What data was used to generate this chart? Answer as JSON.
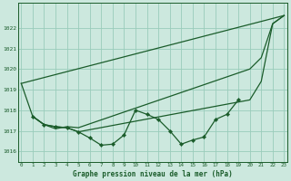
{
  "bg_color": "#cce8de",
  "grid_color": "#99ccbb",
  "line_color": "#1a5c2a",
  "title": "Graphe pression niveau de la mer (hPa)",
  "ylim": [
    1015.5,
    1023.2
  ],
  "yticks": [
    1016,
    1017,
    1018,
    1019,
    1020,
    1021,
    1022
  ],
  "xlim": [
    -0.3,
    23.3
  ],
  "xticks": [
    0,
    1,
    2,
    3,
    4,
    5,
    6,
    7,
    8,
    9,
    10,
    11,
    12,
    13,
    14,
    15,
    16,
    17,
    18,
    19,
    20,
    21,
    22,
    23
  ],
  "series_straight": [
    [
      0,
      23
    ],
    [
      1019.3,
      1022.6
    ]
  ],
  "series_upper": {
    "x": [
      0,
      1,
      2,
      3,
      4,
      5,
      20,
      21,
      22,
      23
    ],
    "y": [
      1019.3,
      1017.7,
      1017.3,
      1017.1,
      1017.2,
      1017.15,
      1020.0,
      1020.55,
      1022.2,
      1022.6
    ]
  },
  "series_lower_smooth": {
    "x": [
      1,
      2,
      3,
      4,
      5,
      20,
      21,
      22,
      23
    ],
    "y": [
      1017.7,
      1017.3,
      1017.2,
      1017.15,
      1016.95,
      1018.5,
      1019.4,
      1022.2,
      1022.6
    ]
  },
  "series_markers": {
    "x": [
      1,
      2,
      3,
      4,
      5,
      6,
      7,
      8,
      9,
      10,
      11,
      12,
      13,
      14,
      15,
      16,
      17,
      18,
      19
    ],
    "y": [
      1017.7,
      1017.3,
      1017.2,
      1017.15,
      1016.95,
      1016.65,
      1016.3,
      1016.35,
      1016.8,
      1018.0,
      1017.8,
      1017.55,
      1017.0,
      1016.35,
      1016.55,
      1016.7,
      1017.55,
      1017.8,
      1018.5
    ]
  }
}
